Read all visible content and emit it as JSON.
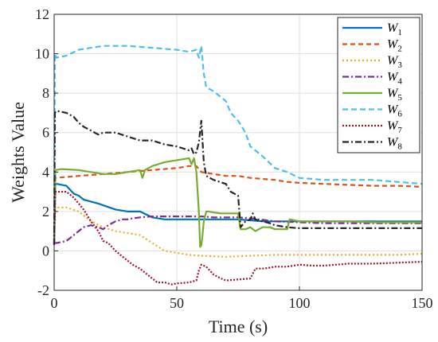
{
  "chart_data": {
    "type": "line",
    "xlabel": "Time (s)",
    "ylabel": "Weights Value",
    "xlim": [
      0,
      150
    ],
    "ylim": [
      -2,
      12
    ],
    "xticks": [
      0,
      50,
      100,
      150
    ],
    "yticks": [
      -2,
      0,
      2,
      4,
      6,
      8,
      10,
      12
    ],
    "grid": true,
    "legend_position": "top-right",
    "series": [
      {
        "name": "W",
        "sub": "1",
        "color": "#0072BD",
        "dash": "solid",
        "x": [
          0,
          0.5,
          1,
          5,
          8,
          10,
          12,
          18,
          25,
          30,
          35,
          40,
          45,
          50,
          55,
          58,
          59,
          60,
          62,
          70,
          75,
          80,
          85,
          90,
          95,
          100,
          110,
          120,
          130,
          140,
          150
        ],
        "y": [
          0.4,
          3.4,
          3.4,
          3.3,
          2.9,
          2.8,
          2.6,
          2.4,
          2.1,
          2.0,
          2.0,
          1.7,
          1.6,
          1.6,
          1.6,
          1.6,
          1.6,
          1.6,
          1.6,
          1.6,
          1.6,
          1.55,
          1.5,
          1.5,
          1.5,
          1.5,
          1.5,
          1.5,
          1.5,
          1.5,
          1.5
        ]
      },
      {
        "name": "W",
        "sub": "2",
        "color": "#D95319",
        "dash": "6,4",
        "x": [
          0,
          0.5,
          5,
          10,
          20,
          30,
          40,
          50,
          55,
          58,
          60,
          65,
          70,
          75,
          80,
          90,
          95,
          100,
          110,
          120,
          130,
          140,
          150
        ],
        "y": [
          0.3,
          3.7,
          3.75,
          3.8,
          3.9,
          4.0,
          4.1,
          4.2,
          4.3,
          4.3,
          4.0,
          3.9,
          3.8,
          3.8,
          3.7,
          3.6,
          3.5,
          3.45,
          3.4,
          3.35,
          3.3,
          3.3,
          3.25
        ]
      },
      {
        "name": "W",
        "sub": "3",
        "color": "#EDB120",
        "dash": "2,3",
        "x": [
          0,
          0.5,
          5,
          10,
          15,
          20,
          25,
          30,
          35,
          40,
          45,
          50,
          55,
          60,
          70,
          80,
          90,
          100,
          110,
          120,
          130,
          140,
          150
        ],
        "y": [
          0.3,
          2.2,
          2.2,
          2.0,
          1.5,
          1.2,
          1.0,
          0.9,
          0.8,
          0.4,
          0.0,
          -0.1,
          -0.2,
          -0.25,
          -0.3,
          -0.25,
          -0.2,
          -0.2,
          -0.2,
          -0.2,
          -0.2,
          -0.2,
          -0.15
        ]
      },
      {
        "name": "W",
        "sub": "4",
        "color": "#7E2F8E",
        "dash": "8,3,2,3",
        "x": [
          0,
          1,
          5,
          8,
          10,
          12,
          15,
          18,
          20,
          22,
          25,
          28,
          30,
          32,
          35,
          40,
          45,
          50,
          55,
          60,
          65,
          70,
          75,
          80,
          90,
          100,
          110,
          120,
          130,
          140,
          150
        ],
        "y": [
          0.4,
          0.4,
          0.5,
          0.8,
          1.0,
          1.2,
          1.3,
          1.2,
          1.1,
          1.3,
          1.5,
          1.6,
          1.6,
          1.65,
          1.7,
          1.75,
          1.75,
          1.75,
          1.75,
          1.75,
          1.7,
          1.7,
          1.7,
          1.65,
          1.5,
          1.45,
          1.4,
          1.4,
          1.4,
          1.4,
          1.4
        ]
      },
      {
        "name": "W",
        "sub": "5",
        "color": "#77AC30",
        "dash": "solid",
        "x": [
          0,
          0.5,
          3,
          10,
          15,
          20,
          25,
          30,
          35,
          36,
          37,
          40,
          45,
          50,
          55,
          56,
          57,
          58,
          59,
          59.5,
          60,
          60.5,
          61,
          62,
          63,
          65,
          68,
          70,
          73,
          75,
          76,
          78,
          80,
          82,
          85,
          88,
          90,
          95,
          96,
          98,
          100,
          110,
          120,
          130,
          140,
          150
        ],
        "y": [
          0.4,
          4.1,
          4.15,
          4.1,
          4.0,
          3.9,
          3.9,
          4.0,
          4.1,
          3.7,
          4.1,
          4.3,
          4.5,
          4.6,
          4.7,
          4.4,
          4.7,
          4.0,
          2.0,
          0.2,
          0.3,
          0.8,
          1.5,
          2.0,
          2.0,
          1.95,
          1.9,
          1.9,
          1.9,
          1.9,
          1.1,
          1.1,
          1.2,
          1.0,
          1.2,
          1.2,
          1.1,
          1.1,
          1.6,
          1.55,
          1.5,
          1.5,
          1.5,
          1.45,
          1.45,
          1.45
        ]
      },
      {
        "name": "W",
        "sub": "6",
        "color": "#4DBEEE",
        "dash": "7,4",
        "x": [
          0,
          0.3,
          0.8,
          5,
          10,
          15,
          20,
          30,
          40,
          50,
          55,
          58,
          59,
          60,
          61,
          62,
          65,
          70,
          72,
          75,
          78,
          80,
          85,
          90,
          95,
          100,
          110,
          120,
          130,
          140,
          150
        ],
        "y": [
          0.3,
          10.0,
          9.8,
          9.9,
          10.2,
          10.3,
          10.4,
          10.4,
          10.3,
          10.2,
          10.1,
          10.2,
          9.8,
          10.4,
          9.0,
          8.3,
          8.1,
          7.6,
          7.0,
          6.6,
          6.0,
          5.3,
          4.8,
          4.2,
          4.0,
          3.7,
          3.6,
          3.6,
          3.6,
          3.5,
          3.4
        ]
      },
      {
        "name": "W",
        "sub": "7",
        "color": "#A2142F",
        "dash": "2,2",
        "x": [
          0,
          0.5,
          5,
          8,
          10,
          12,
          15,
          18,
          20,
          22,
          25,
          28,
          30,
          32,
          35,
          38,
          40,
          42,
          45,
          48,
          50,
          55,
          58,
          59,
          60,
          62,
          65,
          68,
          70,
          75,
          80,
          82,
          85,
          88,
          90,
          95,
          100,
          105,
          110,
          120,
          130,
          140,
          150
        ],
        "y": [
          0.4,
          3.0,
          3.0,
          2.7,
          2.4,
          2.1,
          1.5,
          1.0,
          0.5,
          0.4,
          0.0,
          -0.3,
          -0.5,
          -0.7,
          -0.9,
          -1.2,
          -1.4,
          -1.6,
          -1.6,
          -1.7,
          -1.65,
          -1.6,
          -1.5,
          -1.0,
          -0.7,
          -0.8,
          -1.2,
          -1.4,
          -1.5,
          -1.45,
          -1.4,
          -0.9,
          -0.9,
          -0.85,
          -0.8,
          -0.8,
          -0.7,
          -0.75,
          -0.75,
          -0.65,
          -0.65,
          -0.6,
          -0.55
        ]
      },
      {
        "name": "W",
        "sub": "8",
        "color": "#262626",
        "dash": "8,3,2,3",
        "x": [
          0,
          0.3,
          1,
          5,
          8,
          10,
          12,
          15,
          18,
          20,
          25,
          30,
          35,
          40,
          45,
          50,
          55,
          56,
          57,
          58,
          59,
          60,
          61,
          62,
          65,
          70,
          72,
          75,
          76,
          78,
          80,
          81,
          82,
          85,
          88,
          90,
          95,
          100,
          110,
          120,
          130,
          140,
          150
        ],
        "y": [
          0.3,
          7.0,
          7.1,
          7.0,
          6.8,
          6.5,
          6.3,
          6.1,
          5.9,
          6.0,
          6.0,
          5.8,
          5.6,
          5.6,
          5.4,
          5.3,
          5.1,
          5.2,
          4.9,
          5.0,
          5.5,
          6.6,
          4.5,
          3.8,
          3.6,
          3.4,
          3.0,
          2.8,
          1.2,
          1.5,
          1.6,
          1.9,
          1.6,
          1.5,
          1.4,
          1.3,
          1.2,
          1.15,
          1.15,
          1.15,
          1.15,
          1.15,
          1.15
        ]
      }
    ]
  }
}
